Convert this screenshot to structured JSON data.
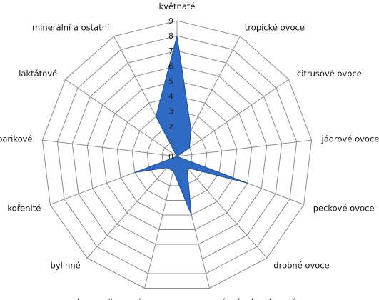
{
  "chart_data": {
    "type": "radar",
    "categories": [
      "květnaté",
      "tropické ovoce",
      "citrusové ovoce",
      "jádrové ovoce",
      "peckové ovoce",
      "drobné ovoce",
      "sušené a kandované ovoce",
      "karamelizované",
      "bylinné",
      "kořenité",
      "barikové",
      "laktátové",
      "minerální a ostatní"
    ],
    "values": [
      8,
      2,
      1,
      0,
      5,
      1,
      4,
      1,
      1,
      3,
      0,
      0,
      3
    ],
    "ylim": [
      0,
      9
    ],
    "ticks": [
      "0",
      "1",
      "2",
      "3",
      "4",
      "5",
      "6",
      "7",
      "8",
      "9"
    ],
    "grid": true,
    "colors": {
      "series": "#2f6bc4",
      "grid": "#8c8c8c"
    }
  }
}
